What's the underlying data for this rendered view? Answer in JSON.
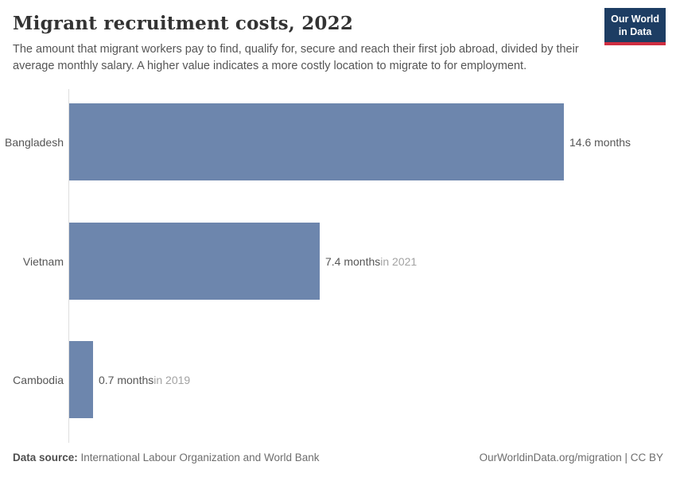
{
  "header": {
    "title": "Migrant recruitment costs, 2022",
    "subtitle": "The amount that migrant workers pay to find, qualify for, secure and reach their first job abroad, divided by their average monthly salary. A higher value indicates a more costly location to migrate to for employment.",
    "logo_line1": "Our World",
    "logo_line2": "in Data"
  },
  "chart_data": {
    "type": "bar",
    "orientation": "horizontal",
    "title": "Migrant recruitment costs, 2022",
    "categories": [
      "Bangladesh",
      "Vietnam",
      "Cambodia"
    ],
    "values": [
      14.6,
      7.4,
      0.7
    ],
    "unit": "months",
    "value_labels": [
      "14.6 months",
      "7.4 months",
      "0.7 months"
    ],
    "year_notes": [
      "",
      "in 2021",
      "in 2019"
    ],
    "xlim": [
      0,
      14.6
    ],
    "grid": false,
    "legend": false,
    "bar_color": "#6d86ad"
  },
  "footer": {
    "source_label": "Data source:",
    "source_text": " International Labour Organization and World Bank",
    "attribution": "OurWorldinData.org/migration | CC BY"
  },
  "colors": {
    "bar": "#6d86ad",
    "axis_line": "#dedede",
    "logo_background": "#1d3d63",
    "logo_accent": "#cf2e41",
    "text_primary": "#333333",
    "text_secondary": "#555555",
    "year_note": "#a3a3a3"
  }
}
